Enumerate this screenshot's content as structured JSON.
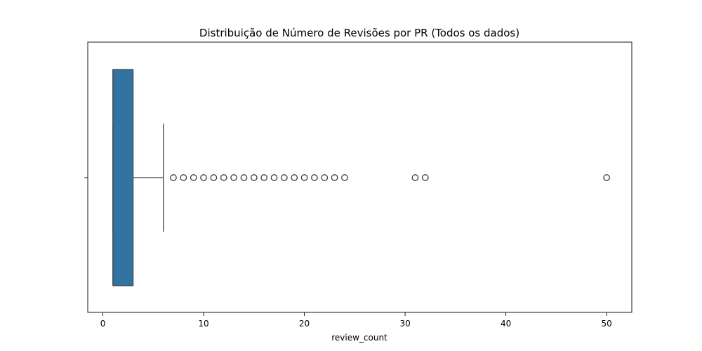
{
  "chart_data": {
    "type": "box",
    "orientation": "horizontal",
    "title": "Distribuição de Número de Revisões por PR (Todos os dados)",
    "xlabel": "review_count",
    "ylabel": "",
    "xlim": [
      -1.5,
      52.5
    ],
    "xticks": [
      0,
      10,
      20,
      30,
      40,
      50
    ],
    "grid": false,
    "box": {
      "min": 1,
      "q1": 1,
      "median": 1,
      "q3": 3,
      "whisker_low": 1,
      "whisker_high": 6,
      "color": "#3274a1"
    },
    "outliers": [
      7,
      8,
      9,
      10,
      11,
      12,
      13,
      14,
      15,
      16,
      17,
      18,
      19,
      20,
      21,
      22,
      23,
      24,
      31,
      32,
      50
    ]
  }
}
